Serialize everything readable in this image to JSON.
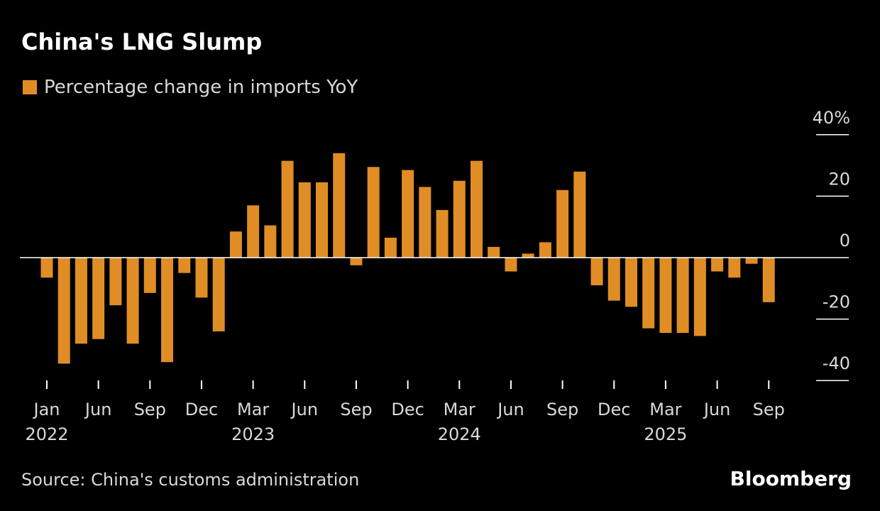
{
  "title": "China's LNG Slump",
  "legend_label": "Percentage change in imports YoY",
  "source": "Source: China's customs administration",
  "logo": "Bloomberg",
  "colors": {
    "bar": "#e08d26",
    "background": "#000000",
    "axis": "#ffffff",
    "text": "#d9d9d9"
  },
  "chart_data": {
    "type": "bar",
    "ylim": [
      -40,
      40
    ],
    "yticks": [
      "40%",
      "20",
      "0",
      "-20",
      "-40"
    ],
    "ytick_values": [
      40,
      20,
      0,
      -20,
      -40
    ],
    "x_ticks": [
      {
        "month": "Jan",
        "year": "2022",
        "index": 0
      },
      {
        "month": "Jun",
        "year": "",
        "index": 3
      },
      {
        "month": "Sep",
        "year": "",
        "index": 6
      },
      {
        "month": "Dec",
        "year": "",
        "index": 9
      },
      {
        "month": "Mar",
        "year": "2023",
        "index": 12
      },
      {
        "month": "Jun",
        "year": "",
        "index": 15
      },
      {
        "month": "Sep",
        "year": "",
        "index": 18
      },
      {
        "month": "Dec",
        "year": "",
        "index": 21
      },
      {
        "month": "Mar",
        "year": "2024",
        "index": 24
      },
      {
        "month": "Jun",
        "year": "",
        "index": 27
      },
      {
        "month": "Sep",
        "year": "",
        "index": 30
      },
      {
        "month": "Dec",
        "year": "",
        "index": 33
      },
      {
        "month": "Mar",
        "year": "2025",
        "index": 36
      },
      {
        "month": "Jun",
        "year": "",
        "index": 39
      },
      {
        "month": "Sep",
        "year": "",
        "index": 42
      }
    ],
    "categories": [
      "2022-01",
      "2022-02",
      "2022-03",
      "2022-04",
      "2022-05",
      "2022-06",
      "2022-07",
      "2022-08",
      "2022-09",
      "2022-10",
      "2022-11",
      "2022-12",
      "2023-01",
      "2023-02",
      "2023-03",
      "2023-04",
      "2023-05",
      "2023-06",
      "2023-07",
      "2023-08",
      "2023-09",
      "2023-10",
      "2023-11",
      "2023-12",
      "2024-01",
      "2024-02",
      "2024-03",
      "2024-04",
      "2024-05",
      "2024-06",
      "2024-07",
      "2024-08",
      "2024-09",
      "2024-10",
      "2024-11",
      "2024-12",
      "2025-01",
      "2025-02",
      "2025-03",
      "2025-04",
      "2025-05",
      "2025-06",
      "2025-07",
      "2025-08",
      "2025-09"
    ],
    "values": [
      -6.5,
      -34.5,
      -28,
      -26.5,
      -15.5,
      -28,
      -11.5,
      -34,
      -5,
      -13,
      -24,
      8.5,
      17,
      10.5,
      31.5,
      24.5,
      24.5,
      34,
      -2.5,
      29.5,
      6.5,
      28.5,
      23,
      15.5,
      25,
      31.5,
      3.5,
      -4.5,
      1.3,
      5,
      22,
      28,
      -9,
      -14,
      -16,
      -23,
      -24.5,
      -24.5,
      -25.5,
      -4.5,
      -6.5,
      -2,
      -14.5,
      0,
      0
    ]
  }
}
